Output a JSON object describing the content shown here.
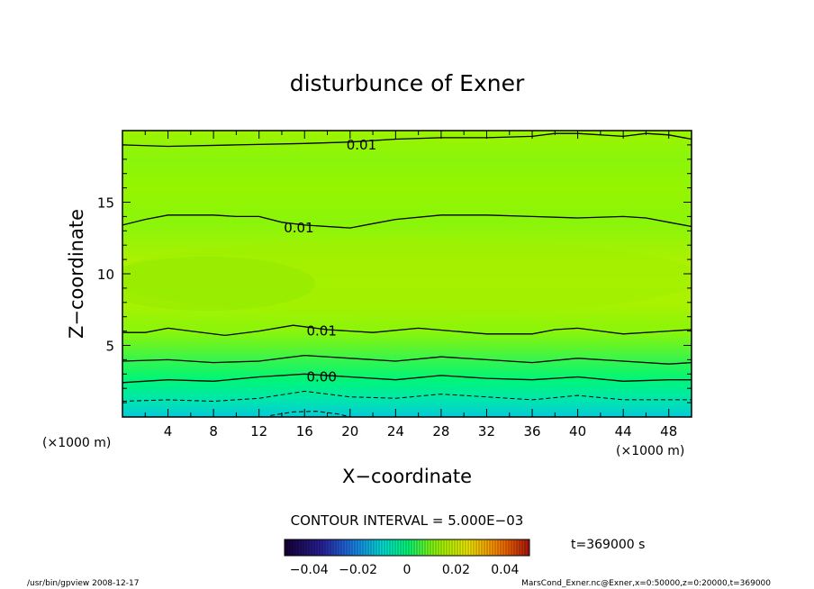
{
  "chart_data": {
    "type": "heatmap",
    "title": "disturbunce of Exner",
    "xlabel": "X−coordinate",
    "ylabel": "Z−coordinate",
    "x_unit": "(×1000 m)",
    "y_unit": "(×1000 m)",
    "xlim": [
      0,
      50
    ],
    "ylim": [
      0,
      20
    ],
    "x_ticks": [
      4,
      8,
      12,
      16,
      20,
      24,
      28,
      32,
      36,
      40,
      44,
      48
    ],
    "y_ticks": [
      5,
      10,
      15
    ],
    "contour_interval_text": "CONTOUR INTERVAL = 5.000E−03",
    "time_text": "t=369000 s",
    "colorbar": {
      "min": -0.05,
      "max": 0.05,
      "tick_labels": [
        "−0.04",
        "−0.02",
        "0",
        "0.02",
        "0.04"
      ],
      "tick_values": [
        -0.04,
        -0.02,
        0,
        0.02,
        0.04
      ]
    },
    "contour_labels": [
      {
        "text": "0.01",
        "x": 21,
        "z": 19.0
      },
      {
        "text": "0.01",
        "x": 15.5,
        "z": 13.2
      },
      {
        "text": "0.01",
        "x": 17.5,
        "z": 6.0
      },
      {
        "text": "0.00",
        "x": 17.5,
        "z": 2.8
      }
    ],
    "contours": [
      {
        "level": 0.01,
        "style": "solid",
        "z_at_x": [
          [
            0,
            19.0
          ],
          [
            4,
            18.9
          ],
          [
            10,
            19.0
          ],
          [
            16,
            19.1
          ],
          [
            20,
            19.2
          ],
          [
            24,
            19.4
          ],
          [
            28,
            19.5
          ],
          [
            32,
            19.5
          ],
          [
            36,
            19.6
          ],
          [
            38,
            19.8
          ],
          [
            40,
            19.8
          ],
          [
            44,
            19.6
          ],
          [
            46,
            19.8
          ],
          [
            48,
            19.7
          ],
          [
            50,
            19.4
          ]
        ]
      },
      {
        "level": 0.01,
        "style": "solid",
        "z_at_x": [
          [
            0,
            13.4
          ],
          [
            2,
            13.8
          ],
          [
            4,
            14.1
          ],
          [
            8,
            14.1
          ],
          [
            10,
            14.0
          ],
          [
            12,
            14.0
          ],
          [
            14,
            13.6
          ],
          [
            16,
            13.4
          ],
          [
            20,
            13.2
          ],
          [
            22,
            13.5
          ],
          [
            24,
            13.8
          ],
          [
            28,
            14.1
          ],
          [
            32,
            14.1
          ],
          [
            36,
            14.0
          ],
          [
            40,
            13.9
          ],
          [
            44,
            14.0
          ],
          [
            46,
            13.9
          ],
          [
            48,
            13.6
          ],
          [
            50,
            13.3
          ]
        ]
      },
      {
        "level": 0.01,
        "style": "solid",
        "z_at_x": [
          [
            0,
            5.9
          ],
          [
            2,
            5.9
          ],
          [
            4,
            6.2
          ],
          [
            6,
            6.0
          ],
          [
            9,
            5.7
          ],
          [
            12,
            6.0
          ],
          [
            15,
            6.4
          ],
          [
            18,
            6.1
          ],
          [
            22,
            5.9
          ],
          [
            26,
            6.2
          ],
          [
            29,
            6.0
          ],
          [
            32,
            5.8
          ],
          [
            36,
            5.8
          ],
          [
            38,
            6.1
          ],
          [
            40,
            6.2
          ],
          [
            42,
            6.0
          ],
          [
            44,
            5.8
          ],
          [
            48,
            6.0
          ],
          [
            50,
            6.1
          ]
        ]
      },
      {
        "level": 0.005,
        "style": "solid",
        "z_at_x": [
          [
            0,
            3.9
          ],
          [
            4,
            4.0
          ],
          [
            8,
            3.8
          ],
          [
            12,
            3.9
          ],
          [
            16,
            4.3
          ],
          [
            20,
            4.1
          ],
          [
            24,
            3.9
          ],
          [
            28,
            4.2
          ],
          [
            32,
            4.0
          ],
          [
            36,
            3.8
          ],
          [
            40,
            4.1
          ],
          [
            44,
            3.9
          ],
          [
            48,
            3.7
          ],
          [
            50,
            3.8
          ]
        ]
      },
      {
        "level": 0.0,
        "style": "solid",
        "z_at_x": [
          [
            0,
            2.4
          ],
          [
            4,
            2.6
          ],
          [
            8,
            2.5
          ],
          [
            12,
            2.8
          ],
          [
            16,
            3.0
          ],
          [
            20,
            2.8
          ],
          [
            24,
            2.6
          ],
          [
            28,
            2.9
          ],
          [
            32,
            2.7
          ],
          [
            36,
            2.6
          ],
          [
            40,
            2.8
          ],
          [
            44,
            2.5
          ],
          [
            48,
            2.6
          ],
          [
            50,
            2.6
          ]
        ]
      },
      {
        "level": -0.005,
        "style": "dashed",
        "z_at_x": [
          [
            0,
            1.1
          ],
          [
            4,
            1.2
          ],
          [
            8,
            1.1
          ],
          [
            12,
            1.3
          ],
          [
            16,
            1.8
          ],
          [
            20,
            1.4
          ],
          [
            24,
            1.3
          ],
          [
            28,
            1.6
          ],
          [
            32,
            1.4
          ],
          [
            36,
            1.2
          ],
          [
            40,
            1.5
          ],
          [
            44,
            1.2
          ],
          [
            48,
            1.2
          ],
          [
            50,
            1.2
          ]
        ]
      },
      {
        "level": -0.01,
        "style": "dashed",
        "z_at_x": [
          [
            13,
            0.1
          ],
          [
            15,
            0.35
          ],
          [
            17,
            0.4
          ],
          [
            19,
            0.2
          ],
          [
            20,
            0.0
          ]
        ]
      }
    ],
    "color_bands_z": [
      {
        "z": 0.0,
        "value": -0.012
      },
      {
        "z": 1.2,
        "value": -0.006
      },
      {
        "z": 2.6,
        "value": 0.0
      },
      {
        "z": 3.9,
        "value": 0.004
      },
      {
        "z": 5.0,
        "value": 0.008
      },
      {
        "z": 6.0,
        "value": 0.011
      },
      {
        "z": 8.0,
        "value": 0.015
      },
      {
        "z": 10.5,
        "value": 0.016
      },
      {
        "z": 13.5,
        "value": 0.011
      },
      {
        "z": 16.0,
        "value": 0.012
      },
      {
        "z": 18.0,
        "value": 0.011
      },
      {
        "z": 20.0,
        "value": 0.013
      }
    ]
  },
  "footer": {
    "left": "/usr/bin/gpview   2008-12-17",
    "right": "MarsCond_Exner.nc@Exner,x=0:50000,z=0:20000,t=369000"
  }
}
